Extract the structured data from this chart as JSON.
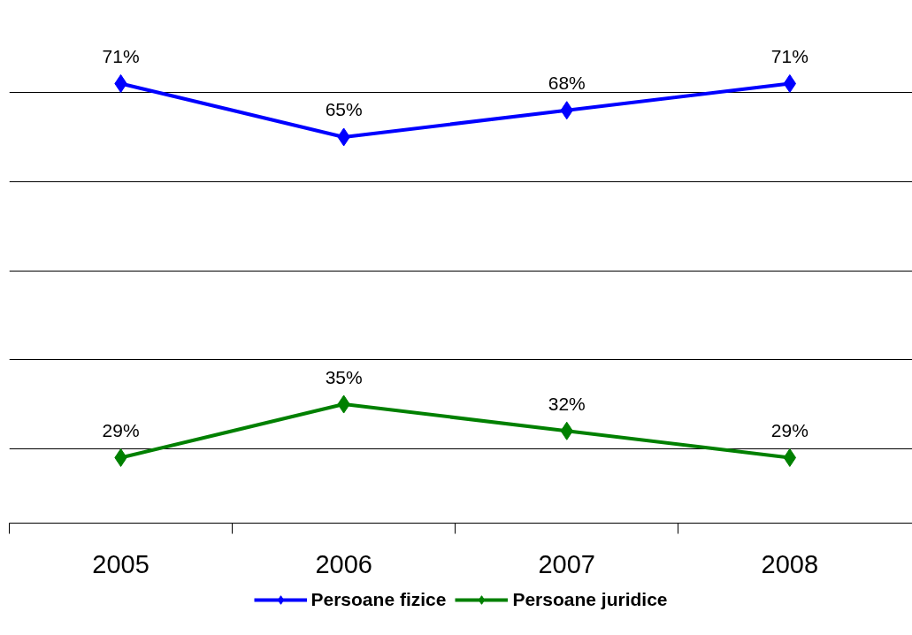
{
  "chart_data": {
    "type": "line",
    "categories": [
      "2005",
      "2006",
      "2007",
      "2008"
    ],
    "series": [
      {
        "name": "Persoane fizice",
        "color": "#0000ff",
        "values": [
          71,
          65,
          68,
          71
        ],
        "value_labels": [
          "71%",
          "65%",
          "68%",
          "71%"
        ]
      },
      {
        "name": "Persoane juridice",
        "color": "#008000",
        "values": [
          29,
          35,
          32,
          29
        ],
        "value_labels": [
          "29%",
          "35%",
          "32%",
          "29%"
        ]
      }
    ],
    "grid": "y",
    "legend": "bottom",
    "marker": "diamond",
    "line_style": "solid",
    "tick_labels": "x"
  }
}
